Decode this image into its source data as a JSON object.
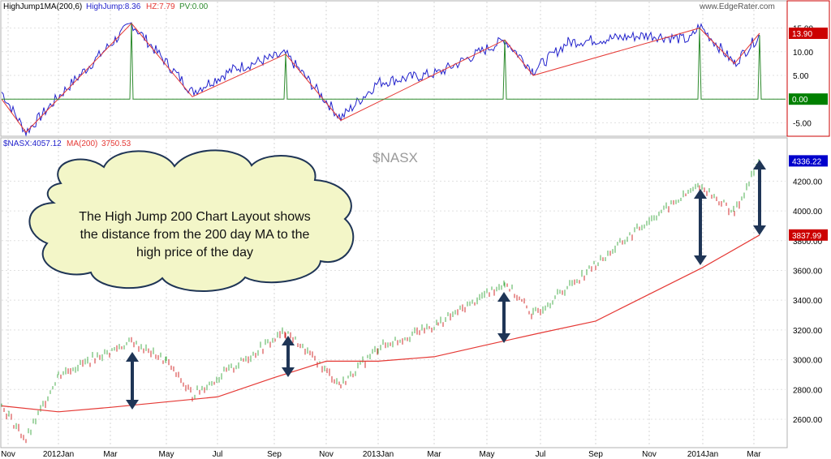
{
  "top_panel": {
    "legend": {
      "indicator": "HighJump1MA(200,6)",
      "highjump": "HighJump:8.36",
      "hz": "HZ:7.79",
      "pv": "PV:0.00"
    },
    "watermark": "www.EdgeRater.com",
    "y_ticks": [
      "15.00",
      "10.00",
      "5.00",
      "0.00",
      "-5.00"
    ],
    "value_badges": [
      {
        "text": "13.90",
        "value": 13.9,
        "color": "#cc0000"
      },
      {
        "text": "0.00",
        "value": 0.0,
        "color": "#008000"
      }
    ]
  },
  "bottom_panel": {
    "legend": {
      "symbol": "$NASX:4057.12",
      "ma": "MA(200)",
      "ma_value": "3750.53"
    },
    "title": "$NASX",
    "y_ticks": [
      "4200.00",
      "4000.00",
      "3800.00",
      "3600.00",
      "3400.00",
      "3200.00",
      "3000.00",
      "2800.00",
      "2600.00"
    ],
    "value_badges": [
      {
        "text": "4336.22",
        "value": 4336.22,
        "color": "#0000cc"
      },
      {
        "text": "3837.99",
        "value": 3837.99,
        "color": "#cc0000"
      }
    ],
    "callout": {
      "line1": "The High Jump 200 Chart  Layout shows",
      "line2": "the distance from the 200 day MA to the",
      "line3": "high price of the day"
    }
  },
  "x_axis_labels": [
    "Nov",
    "2012Jan",
    "Mar",
    "May",
    "Jul",
    "Sep",
    "Nov",
    "2013Jan",
    "Mar",
    "May",
    "Jul",
    "Sep",
    "Nov",
    "2014Jan",
    "Mar"
  ],
  "colors": {
    "up_bar": "#4caf50",
    "down_bar": "#d32f2f",
    "ma_line": "#e53935",
    "highjump_line": "#2222cc",
    "hz_line": "#e53935",
    "pv_line": "#2e8b2e",
    "arrow": "#1f3556",
    "cloud_fill": "#f3f6c8"
  },
  "chart_data": [
    {
      "type": "line",
      "title": "HighJump1MA(200,6)",
      "ylim": [
        -7.5,
        17.5
      ],
      "series": [
        {
          "name": "HighJump",
          "x": [
            "Oct",
            "Nov",
            "Jan",
            "Mar",
            "May",
            "Jul",
            "Sep",
            "Nov",
            "Jan",
            "Mar",
            "May",
            "Jun",
            "Jul",
            "Sep",
            "Nov",
            "Jan",
            "Feb",
            "Mar"
          ],
          "values": [
            1.5,
            -7.0,
            0.5,
            16.0,
            1.5,
            6.5,
            9.5,
            -4.0,
            3.5,
            5.5,
            12.5,
            6.0,
            12.0,
            13.5,
            12.5,
            15.5,
            7.5,
            13.5
          ]
        },
        {
          "name": "HZ",
          "x": [
            "Oct",
            "Nov",
            "Mar",
            "May",
            "Sep",
            "Nov",
            "May",
            "Jun",
            "Jan",
            "Feb",
            "Mar"
          ],
          "values": [
            0.0,
            -7.0,
            16.0,
            0.5,
            9.5,
            -4.5,
            12.5,
            5.0,
            15.0,
            7.5,
            13.9
          ]
        },
        {
          "name": "PV",
          "x": [
            "Mar",
            "Sep",
            "May",
            "Jan",
            "Mar"
          ],
          "values": [
            16.0,
            9.5,
            12.5,
            15.0,
            13.5
          ]
        }
      ]
    },
    {
      "type": "bar",
      "title": "$NASX",
      "ylim": [
        2420,
        4420
      ],
      "series": [
        {
          "name": "$NASX",
          "x": [
            "Oct",
            "Nov",
            "Jan",
            "Mar",
            "Apr",
            "Jun",
            "Sep",
            "Nov",
            "Jan",
            "Mar",
            "May",
            "Jun",
            "Aug",
            "Nov",
            "Jan",
            "Feb",
            "Mar"
          ],
          "values": [
            2690,
            2460,
            2900,
            3120,
            2990,
            2760,
            3190,
            2830,
            3080,
            3240,
            3520,
            3300,
            3640,
            3940,
            4170,
            3990,
            4336
          ]
        },
        {
          "name": "MA(200)",
          "x": [
            "Oct",
            "Jan",
            "Mar",
            "Jun",
            "Sep",
            "Nov",
            "Jan",
            "Mar",
            "May",
            "Jul",
            "Sep",
            "Nov",
            "Jan",
            "Mar"
          ],
          "values": [
            2690,
            2650,
            2680,
            2750,
            2880,
            2990,
            2990,
            3020,
            3100,
            3180,
            3260,
            3440,
            3620,
            3838
          ]
        }
      ]
    }
  ]
}
